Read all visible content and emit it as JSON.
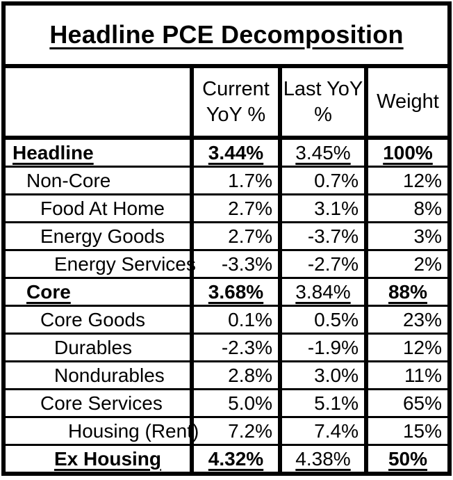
{
  "title": "Headline PCE Decomposition",
  "columns": {
    "label": "",
    "current": "Current YoY %",
    "last": "Last YoY %",
    "weight": "Weight"
  },
  "rows": [
    {
      "label": "Headline",
      "current": "3.44%",
      "last": "3.45%",
      "weight": "100%",
      "indent": 0,
      "emphasis": true
    },
    {
      "label": "Non-Core",
      "current": "1.7%",
      "last": "0.7%",
      "weight": "12%",
      "indent": 1,
      "emphasis": false
    },
    {
      "label": "Food At Home",
      "current": "2.7%",
      "last": "3.1%",
      "weight": "8%",
      "indent": 2,
      "emphasis": false
    },
    {
      "label": "Energy Goods",
      "current": "2.7%",
      "last": "-3.7%",
      "weight": "3%",
      "indent": 2,
      "emphasis": false
    },
    {
      "label": "Energy Services",
      "current": "-3.3%",
      "last": "-2.7%",
      "weight": "2%",
      "indent": 3,
      "emphasis": false
    },
    {
      "label": "Core",
      "current": "3.68%",
      "last": "3.84%",
      "weight": "88%",
      "indent": 1,
      "emphasis": true
    },
    {
      "label": "Core Goods",
      "current": "0.1%",
      "last": "0.5%",
      "weight": "23%",
      "indent": 2,
      "emphasis": false
    },
    {
      "label": "Durables",
      "current": "-2.3%",
      "last": "-1.9%",
      "weight": "12%",
      "indent": 3,
      "emphasis": false
    },
    {
      "label": "Nondurables",
      "current": "2.8%",
      "last": "3.0%",
      "weight": "11%",
      "indent": 3,
      "emphasis": false
    },
    {
      "label": "Core Services",
      "current": "5.0%",
      "last": "5.1%",
      "weight": "65%",
      "indent": 2,
      "emphasis": false
    },
    {
      "label": "Housing (Rent)",
      "current": "7.2%",
      "last": "7.4%",
      "weight": "15%",
      "indent": 4,
      "emphasis": false
    },
    {
      "label": "Ex Housing",
      "current": "4.32%",
      "last": "4.38%",
      "weight": "50%",
      "indent": 3,
      "emphasis": true
    }
  ],
  "colors": {
    "text": "#000000",
    "background": "#ffffff",
    "border": "#000000"
  },
  "chart_data": {
    "type": "table",
    "title": "Headline PCE Decomposition",
    "columns": [
      "",
      "Current YoY %",
      "Last YoY %",
      "Weight"
    ],
    "rows": [
      [
        "Headline",
        3.44,
        3.45,
        100
      ],
      [
        "Non-Core",
        1.7,
        0.7,
        12
      ],
      [
        "Food At Home",
        2.7,
        3.1,
        8
      ],
      [
        "Energy Goods",
        2.7,
        -3.7,
        3
      ],
      [
        "Energy Services",
        -3.3,
        -2.7,
        2
      ],
      [
        "Core",
        3.68,
        3.84,
        88
      ],
      [
        "Core Goods",
        0.1,
        0.5,
        23
      ],
      [
        "Durables",
        -2.3,
        -1.9,
        12
      ],
      [
        "Nondurables",
        2.8,
        3.0,
        11
      ],
      [
        "Core Services",
        5.0,
        5.1,
        65
      ],
      [
        "Housing (Rent)",
        7.2,
        7.4,
        15
      ],
      [
        "Ex Housing",
        4.32,
        4.38,
        50
      ]
    ],
    "units": "percent",
    "emphasized_rows": [
      "Headline",
      "Core",
      "Ex Housing"
    ]
  }
}
